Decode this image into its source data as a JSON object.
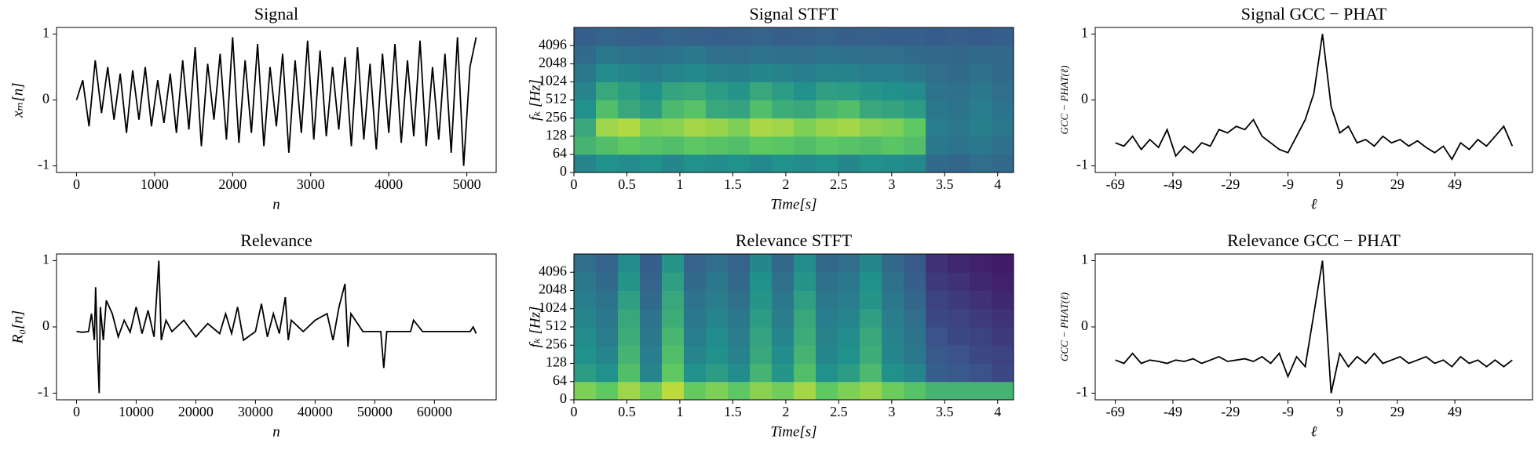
{
  "chart_data": [
    {
      "type": "line",
      "title": "Signal",
      "xlabel": "n",
      "ylabel": "xₘ[n]",
      "color": "#000000",
      "x": [
        0,
        80,
        160,
        240,
        320,
        400,
        480,
        560,
        640,
        720,
        800,
        880,
        960,
        1040,
        1120,
        1200,
        1280,
        1360,
        1440,
        1520,
        1600,
        1680,
        1760,
        1840,
        1920,
        2000,
        2080,
        2160,
        2240,
        2320,
        2400,
        2480,
        2560,
        2640,
        2720,
        2800,
        2880,
        2960,
        3040,
        3120,
        3200,
        3280,
        3360,
        3440,
        3520,
        3600,
        3680,
        3760,
        3840,
        3920,
        4000,
        4080,
        4160,
        4240,
        4320,
        4400,
        4480,
        4560,
        4640,
        4720,
        4800,
        4880,
        4960,
        5040,
        5120
      ],
      "values": [
        0,
        0.3,
        -0.4,
        0.6,
        -0.2,
        0.5,
        -0.3,
        0.4,
        -0.5,
        0.45,
        -0.3,
        0.5,
        -0.4,
        0.3,
        -0.35,
        0.4,
        -0.5,
        0.6,
        -0.45,
        0.8,
        -0.7,
        0.55,
        -0.3,
        0.7,
        -0.6,
        0.95,
        -0.65,
        0.6,
        -0.5,
        0.85,
        -0.7,
        0.5,
        -0.4,
        0.7,
        -0.8,
        0.6,
        -0.5,
        0.9,
        -0.6,
        0.75,
        -0.55,
        0.5,
        -0.45,
        0.65,
        -0.7,
        0.8,
        -0.6,
        0.55,
        -0.75,
        0.7,
        -0.5,
        0.85,
        -0.65,
        0.6,
        -0.55,
        0.9,
        -0.7,
        0.5,
        -0.6,
        0.7,
        -0.8,
        0.95,
        -1.0,
        0.5,
        0.95
      ],
      "xlim": [
        -256,
        5376
      ],
      "xticks": [
        0,
        1000,
        2000,
        3000,
        4000,
        5000
      ],
      "ylim": [
        -1.1,
        1.1
      ],
      "yticks": [
        -1,
        0,
        1
      ]
    },
    {
      "type": "heatmap",
      "title": "Signal STFT",
      "xlabel": "Time[s]",
      "ylabel": "fₖ [Hz]",
      "yscale": "symlog",
      "colormap": "viridis",
      "xlim": [
        0,
        4.15
      ],
      "xticks": [
        0,
        0.5,
        1,
        1.5,
        2,
        2.5,
        3,
        3.5,
        4
      ],
      "ylim": [
        0,
        8192
      ],
      "yticks": [
        0,
        64,
        128,
        256,
        512,
        1024,
        2048,
        4096
      ],
      "z": [
        [
          0.45,
          0.5,
          0.48,
          0.5,
          0.46,
          0.5,
          0.48,
          0.5,
          0.47,
          0.5,
          0.48,
          0.5,
          0.46,
          0.5,
          0.48,
          0.47,
          0.35,
          0.33,
          0.36,
          0.34
        ],
        [
          0.65,
          0.7,
          0.75,
          0.72,
          0.7,
          0.74,
          0.72,
          0.7,
          0.75,
          0.73,
          0.7,
          0.74,
          0.72,
          0.7,
          0.73,
          0.7,
          0.4,
          0.38,
          0.4,
          0.37
        ],
        [
          0.6,
          0.85,
          0.88,
          0.8,
          0.82,
          0.86,
          0.84,
          0.8,
          0.87,
          0.85,
          0.8,
          0.84,
          0.86,
          0.82,
          0.8,
          0.75,
          0.42,
          0.4,
          0.43,
          0.4
        ],
        [
          0.5,
          0.7,
          0.6,
          0.55,
          0.68,
          0.72,
          0.6,
          0.58,
          0.7,
          0.62,
          0.6,
          0.66,
          0.7,
          0.6,
          0.58,
          0.55,
          0.4,
          0.38,
          0.42,
          0.38
        ],
        [
          0.45,
          0.6,
          0.55,
          0.5,
          0.58,
          0.6,
          0.55,
          0.52,
          0.6,
          0.55,
          0.5,
          0.56,
          0.55,
          0.52,
          0.5,
          0.48,
          0.38,
          0.37,
          0.4,
          0.36
        ],
        [
          0.4,
          0.48,
          0.46,
          0.42,
          0.45,
          0.47,
          0.44,
          0.43,
          0.46,
          0.44,
          0.42,
          0.45,
          0.44,
          0.42,
          0.42,
          0.4,
          0.36,
          0.35,
          0.37,
          0.35
        ],
        [
          0.35,
          0.4,
          0.38,
          0.37,
          0.38,
          0.4,
          0.37,
          0.36,
          0.38,
          0.37,
          0.36,
          0.38,
          0.37,
          0.36,
          0.36,
          0.35,
          0.34,
          0.33,
          0.35,
          0.34
        ],
        [
          0.3,
          0.32,
          0.31,
          0.3,
          0.32,
          0.31,
          0.3,
          0.31,
          0.32,
          0.3,
          0.31,
          0.32,
          0.3,
          0.31,
          0.3,
          0.3,
          0.29,
          0.3,
          0.29,
          0.3
        ]
      ]
    },
    {
      "type": "line",
      "title": "Signal GCC − PHAT",
      "xlabel": "ℓ",
      "ylabel": "GCC − PHAT(ℓ)",
      "color": "#000000",
      "x": [
        -69,
        -66,
        -63,
        -60,
        -57,
        -54,
        -51,
        -48,
        -45,
        -42,
        -39,
        -36,
        -33,
        -30,
        -27,
        -24,
        -21,
        -18,
        -15,
        -12,
        -9,
        -6,
        -3,
        0,
        3,
        6,
        9,
        12,
        15,
        18,
        21,
        24,
        27,
        30,
        33,
        36,
        39,
        42,
        45,
        48,
        51,
        54,
        57,
        60,
        63,
        66,
        69
      ],
      "values": [
        -0.65,
        -0.7,
        -0.55,
        -0.75,
        -0.6,
        -0.72,
        -0.45,
        -0.85,
        -0.7,
        -0.8,
        -0.65,
        -0.7,
        -0.45,
        -0.5,
        -0.4,
        -0.45,
        -0.3,
        -0.55,
        -0.65,
        -0.75,
        -0.8,
        -0.55,
        -0.3,
        0.1,
        1,
        -0.1,
        -0.5,
        -0.4,
        -0.65,
        -0.6,
        -0.7,
        -0.55,
        -0.65,
        -0.6,
        -0.7,
        -0.62,
        -0.72,
        -0.8,
        -0.7,
        -0.9,
        -0.65,
        -0.75,
        -0.6,
        -0.7,
        -0.55,
        -0.4,
        -0.7
      ],
      "xlim": [
        -76,
        76
      ],
      "xticks": [
        -69,
        -49,
        -29,
        -9,
        9,
        29,
        49
      ],
      "ylim": [
        -1.1,
        1.1
      ],
      "yticks": [
        -1,
        0,
        1
      ]
    },
    {
      "type": "line",
      "title": "Relevance",
      "xlabel": "n",
      "ylabel": "R₀[n]",
      "color": "#000000",
      "x": [
        0,
        1000,
        2000,
        2500,
        3000,
        3200,
        3500,
        3800,
        4000,
        4500,
        5000,
        6000,
        7000,
        8000,
        9000,
        10000,
        11000,
        12000,
        13000,
        13800,
        14200,
        15000,
        16000,
        18000,
        20000,
        22000,
        24000,
        25000,
        26000,
        27000,
        28000,
        30000,
        31000,
        32000,
        33000,
        34000,
        35000,
        35500,
        36000,
        38000,
        40000,
        42000,
        43000,
        44000,
        45000,
        45500,
        46000,
        48000,
        50000,
        51000,
        51500,
        52000,
        54000,
        56000,
        56500,
        58000,
        60000,
        62000,
        64000,
        66000,
        66500,
        67000
      ],
      "values": [
        -0.07,
        -0.08,
        -0.07,
        0.2,
        -0.2,
        0.6,
        -0.3,
        -1.0,
        0.3,
        -0.2,
        0.4,
        0.2,
        -0.15,
        0.1,
        -0.08,
        0.3,
        -0.1,
        0.25,
        -0.15,
        1.0,
        -0.2,
        0.1,
        -0.07,
        0.1,
        -0.15,
        0.05,
        -0.1,
        0.2,
        -0.1,
        0.3,
        -0.2,
        -0.07,
        0.35,
        -0.15,
        0.2,
        -0.1,
        0.45,
        -0.2,
        0.1,
        -0.07,
        0.1,
        0.2,
        -0.2,
        0.3,
        0.65,
        -0.3,
        0.2,
        -0.07,
        -0.07,
        -0.07,
        -0.62,
        -0.07,
        -0.07,
        -0.07,
        0.1,
        -0.07,
        -0.07,
        -0.07,
        -0.07,
        -0.07,
        0.0,
        -0.1
      ],
      "xlim": [
        -3350,
        70350
      ],
      "xticks": [
        0,
        10000,
        20000,
        30000,
        40000,
        50000,
        60000
      ],
      "ylim": [
        -1.1,
        1.1
      ],
      "yticks": [
        -1,
        0,
        1
      ]
    },
    {
      "type": "heatmap",
      "title": "Relevance STFT",
      "xlabel": "Time[s]",
      "ylabel": "fₖ [Hz]",
      "yscale": "symlog",
      "colormap": "viridis",
      "xlim": [
        0,
        4.15
      ],
      "xticks": [
        0,
        0.5,
        1,
        1.5,
        2,
        2.5,
        3,
        3.5,
        4
      ],
      "ylim": [
        0,
        8192
      ],
      "yticks": [
        0,
        64,
        128,
        256,
        512,
        1024,
        2048,
        4096
      ],
      "z": [
        [
          0.8,
          0.75,
          0.85,
          0.78,
          0.9,
          0.76,
          0.8,
          0.74,
          0.82,
          0.78,
          0.86,
          0.75,
          0.8,
          0.84,
          0.77,
          0.72,
          0.65,
          0.65,
          0.65,
          0.65
        ],
        [
          0.55,
          0.5,
          0.7,
          0.45,
          0.75,
          0.5,
          0.55,
          0.48,
          0.65,
          0.52,
          0.7,
          0.5,
          0.55,
          0.68,
          0.5,
          0.45,
          0.3,
          0.28,
          0.25,
          0.22
        ],
        [
          0.5,
          0.45,
          0.65,
          0.42,
          0.7,
          0.45,
          0.5,
          0.44,
          0.6,
          0.48,
          0.65,
          0.46,
          0.5,
          0.62,
          0.46,
          0.4,
          0.28,
          0.25,
          0.22,
          0.2
        ],
        [
          0.48,
          0.42,
          0.62,
          0.4,
          0.66,
          0.42,
          0.48,
          0.42,
          0.58,
          0.45,
          0.62,
          0.44,
          0.48,
          0.6,
          0.44,
          0.38,
          0.25,
          0.22,
          0.2,
          0.18
        ],
        [
          0.45,
          0.4,
          0.6,
          0.38,
          0.62,
          0.4,
          0.45,
          0.4,
          0.55,
          0.42,
          0.6,
          0.42,
          0.45,
          0.56,
          0.42,
          0.36,
          0.22,
          0.2,
          0.18,
          0.15
        ],
        [
          0.42,
          0.38,
          0.56,
          0.35,
          0.6,
          0.38,
          0.42,
          0.37,
          0.52,
          0.4,
          0.56,
          0.4,
          0.42,
          0.52,
          0.4,
          0.33,
          0.2,
          0.18,
          0.15,
          0.12
        ],
        [
          0.4,
          0.35,
          0.52,
          0.32,
          0.56,
          0.35,
          0.4,
          0.34,
          0.5,
          0.37,
          0.52,
          0.37,
          0.4,
          0.5,
          0.37,
          0.3,
          0.18,
          0.15,
          0.12,
          0.1
        ],
        [
          0.36,
          0.32,
          0.48,
          0.3,
          0.52,
          0.32,
          0.36,
          0.32,
          0.46,
          0.34,
          0.48,
          0.34,
          0.36,
          0.46,
          0.34,
          0.28,
          0.15,
          0.12,
          0.1,
          0.08
        ]
      ]
    },
    {
      "type": "line",
      "title": "Relevance GCC − PHAT",
      "xlabel": "ℓ",
      "ylabel": "GCC − PHAT(ℓ)",
      "color": "#000000",
      "x": [
        -69,
        -66,
        -63,
        -60,
        -57,
        -54,
        -51,
        -48,
        -45,
        -42,
        -39,
        -36,
        -33,
        -30,
        -27,
        -24,
        -21,
        -18,
        -15,
        -12,
        -9,
        -6,
        -3,
        0,
        3,
        6,
        9,
        12,
        15,
        18,
        21,
        24,
        27,
        30,
        33,
        36,
        39,
        42,
        45,
        48,
        51,
        54,
        57,
        60,
        63,
        66,
        69
      ],
      "values": [
        -0.5,
        -0.55,
        -0.4,
        -0.55,
        -0.5,
        -0.52,
        -0.55,
        -0.5,
        -0.52,
        -0.48,
        -0.55,
        -0.5,
        -0.45,
        -0.52,
        -0.5,
        -0.48,
        -0.52,
        -0.45,
        -0.55,
        -0.4,
        -0.75,
        -0.45,
        -0.6,
        0.2,
        1,
        -1.0,
        -0.4,
        -0.6,
        -0.45,
        -0.55,
        -0.4,
        -0.55,
        -0.5,
        -0.45,
        -0.55,
        -0.5,
        -0.45,
        -0.55,
        -0.5,
        -0.6,
        -0.45,
        -0.55,
        -0.5,
        -0.6,
        -0.5,
        -0.6,
        -0.5
      ],
      "xlim": [
        -76,
        76
      ],
      "xticks": [
        -69,
        -49,
        -29,
        -9,
        9,
        29,
        49
      ],
      "ylim": [
        -1.1,
        1.1
      ],
      "yticks": [
        -1,
        0,
        1
      ]
    }
  ]
}
